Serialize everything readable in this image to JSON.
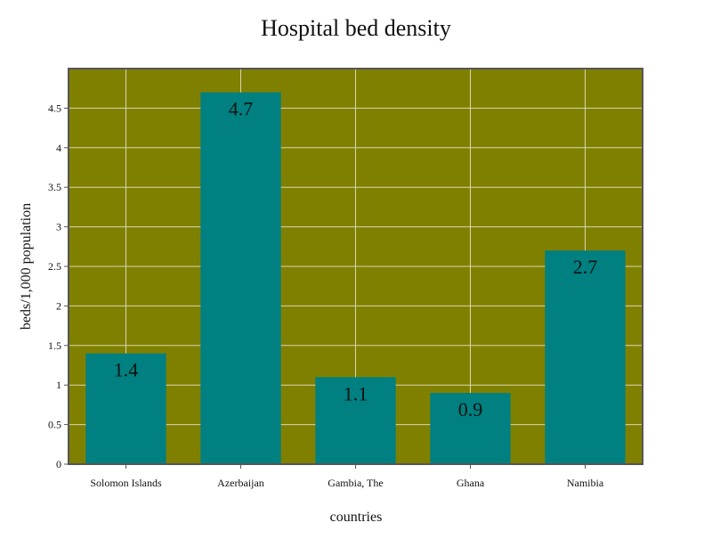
{
  "chart_data": {
    "type": "bar",
    "title": "Hospital bed density",
    "xlabel": "countries",
    "ylabel": "beds/1,000 population",
    "categories": [
      "Solomon Islands",
      "Azerbaijan",
      "Gambia, The",
      "Ghana",
      "Namibia"
    ],
    "values": [
      1.4,
      4.7,
      1.1,
      0.9,
      2.7
    ],
    "data_labels": [
      "1.4",
      "4.7",
      "1.1",
      "0.9",
      "2.7"
    ],
    "ylim": [
      0,
      5
    ],
    "yticks": [
      0,
      0.5,
      1,
      1.5,
      2,
      2.5,
      3,
      3.5,
      4,
      4.5
    ],
    "ytick_labels": [
      "0",
      "0.5",
      "1",
      "1.5",
      "2",
      "2.5",
      "3",
      "3.5",
      "4",
      "4.5"
    ],
    "grid": true,
    "legend": "none",
    "colors": {
      "plot_background": "#808000",
      "bar": "#008080",
      "grid": "#d8d8b0",
      "axis": "#555555"
    }
  }
}
